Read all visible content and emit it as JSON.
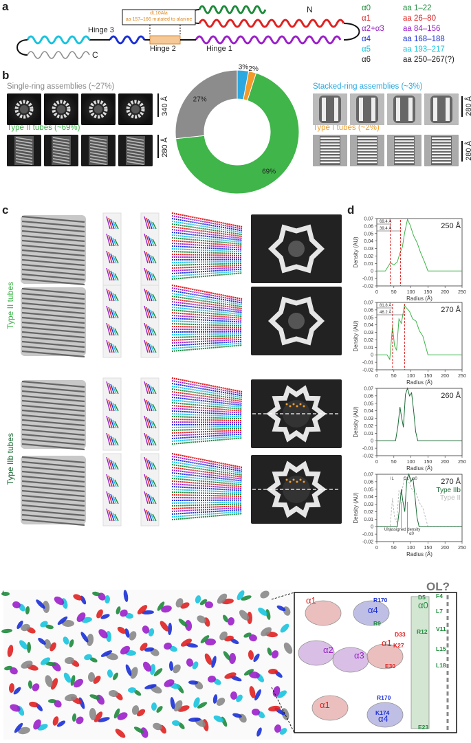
{
  "panel_labels": {
    "a": "a",
    "b": "b",
    "c": "c",
    "d": "d",
    "e": "e"
  },
  "panel_a": {
    "n_label": "N",
    "c_label": "C",
    "hinge1": "Hinge 1",
    "hinge2": "Hinge 2",
    "hinge3": "Hinge 3",
    "callout_line1": "dL10Ala",
    "callout_line2": "aa 157–166 mutated to alanine",
    "legend": [
      {
        "name": "α0",
        "range": "aa 1–22",
        "color": "#1e8a3c"
      },
      {
        "name": "α1",
        "range": "aa 26–80",
        "color": "#e02020"
      },
      {
        "name": "α2+α3",
        "range": "aa 84–156",
        "color": "#9b1fc9"
      },
      {
        "name": "α4",
        "range": "aa 168–188",
        "color": "#1a2fd6"
      },
      {
        "name": "α5",
        "range": "aa 193–217",
        "color": "#18c3de"
      },
      {
        "name": "α6",
        "range": "aa 250–267(?)",
        "color": "#222222"
      }
    ]
  },
  "panel_b": {
    "single_ring": "Single-ring assemblies (~27%)",
    "type2": "Type II tubes (~69%)",
    "stacked": "Stacked-ring assemblies (~3%)",
    "type1": "Type I tubes (~2%)",
    "scale_340": "340 Å",
    "scale_280a": "280 Å",
    "scale_280b": "280 Å",
    "scale_280c": "280 Å",
    "colors": {
      "single_ring": "#888888",
      "type2": "#3bb54a",
      "stacked": "#2aa8e0",
      "type1": "#f0a030"
    }
  },
  "chart_data": [
    {
      "type": "pie",
      "donut": true,
      "categories": [
        "Type II tubes",
        "Single-ring assemblies",
        "Stacked-ring assemblies",
        "Type I tubes"
      ],
      "values": [
        69,
        27,
        3,
        2
      ],
      "labels": [
        "69%",
        "27%",
        "3%",
        "2%"
      ],
      "colors": [
        "#3fb54a",
        "#8c8c8c",
        "#2ca8e0",
        "#f39a2a"
      ]
    },
    {
      "type": "line",
      "title": "250 Å",
      "xlabel": "Radius (Å)",
      "ylabel": "Density (AU)",
      "xlim": [
        0,
        250
      ],
      "ylim": [
        -0.02,
        0.07
      ],
      "x": [
        0,
        25,
        40,
        50,
        60,
        68,
        75,
        82,
        90,
        98,
        108,
        118,
        128,
        140,
        150,
        250
      ],
      "y": [
        0,
        0,
        0.011,
        0.008,
        0.012,
        0.024,
        0.032,
        0.052,
        0.069,
        0.061,
        0.047,
        0.038,
        0.025,
        0.012,
        0,
        0
      ],
      "annotations": [
        "69.4 Å",
        "39.4 Å"
      ],
      "markers": [
        39.4,
        69.4
      ],
      "color": "#3fb54a"
    },
    {
      "type": "line",
      "title": "270 Å",
      "xlabel": "Radius (Å)",
      "ylabel": "Density (AU)",
      "xlim": [
        0,
        250
      ],
      "ylim": [
        -0.02,
        0.07
      ],
      "x": [
        0,
        30,
        38,
        46,
        52,
        58,
        65,
        72,
        81,
        88,
        96,
        105,
        115,
        125,
        135,
        150,
        250
      ],
      "y": [
        0,
        0,
        -0.006,
        0.038,
        0.012,
        0.006,
        0.048,
        0.042,
        0.066,
        0.062,
        0.058,
        0.048,
        0.045,
        0.032,
        0.025,
        0,
        0
      ],
      "annotations": [
        "81.8 Å",
        "46.2 Å"
      ],
      "markers": [
        46.2,
        81.8
      ],
      "color": "#3fb54a"
    },
    {
      "type": "line",
      "title": "260 Å",
      "xlabel": "Radius (Å)",
      "ylabel": "Density (AU)",
      "xlim": [
        0,
        250
      ],
      "ylim": [
        -0.02,
        0.07
      ],
      "x": [
        0,
        55,
        62,
        68,
        72,
        78,
        84,
        90,
        96,
        102,
        108,
        114,
        120,
        250
      ],
      "y": [
        0,
        0,
        0.02,
        0.045,
        0.033,
        0.018,
        0.062,
        0.07,
        0.06,
        0.064,
        0.04,
        0.012,
        0,
        0
      ],
      "color": "#1a6b35"
    },
    {
      "type": "line",
      "title": "270 Å",
      "xlabel": "Radius (Å)",
      "ylabel": "Density (AU)",
      "xlim": [
        0,
        250
      ],
      "ylim": [
        -0.02,
        0.07
      ],
      "series": [
        {
          "name": "Type IIb",
          "x": [
            0,
            60,
            66,
            72,
            76,
            82,
            88,
            94,
            100,
            106,
            112,
            118,
            124,
            250
          ],
          "y": [
            0,
            0,
            0.022,
            0.05,
            0.035,
            0.02,
            0.062,
            0.07,
            0.06,
            0.065,
            0.04,
            0.012,
            0,
            0
          ],
          "color": "#1a6b35"
        },
        {
          "name": "Type II",
          "x": [
            0,
            30,
            38,
            46,
            52,
            58,
            65,
            72,
            81,
            88,
            96,
            105,
            115,
            125,
            135,
            150,
            250
          ],
          "y": [
            0,
            0,
            -0.006,
            0.038,
            0.012,
            0.006,
            0.048,
            0.042,
            0.066,
            0.062,
            0.058,
            0.048,
            0.045,
            0.032,
            0.025,
            0,
            0
          ],
          "color": "#bbbbbb"
        }
      ],
      "annotations": [
        "IL",
        "OL+ α0",
        "Unassigned density",
        "α0"
      ]
    }
  ],
  "axis": {
    "yticks": [
      "0.07",
      "0.06",
      "0.05",
      "0.04",
      "0.03",
      "0.02",
      "0.01",
      "0",
      "-0.01",
      "-0.02"
    ],
    "xticks": [
      "0",
      "50",
      "100",
      "150",
      "200",
      "250"
    ]
  },
  "panel_c": {
    "type2": "Type II tubes",
    "type2b": "Type IIb tubes"
  },
  "panel_e": {
    "ol_label": "OL?",
    "residues": [
      {
        "t": "F4",
        "c": "#1e8a3c"
      },
      {
        "t": "D5",
        "c": "#1e8a3c"
      },
      {
        "t": "L7",
        "c": "#1e8a3c"
      },
      {
        "t": "R9",
        "c": "#1e8a3c"
      },
      {
        "t": "V11",
        "c": "#1e8a3c"
      },
      {
        "t": "R12",
        "c": "#1e8a3c"
      },
      {
        "t": "L15",
        "c": "#1e8a3c"
      },
      {
        "t": "L18",
        "c": "#1e8a3c"
      },
      {
        "t": "E23",
        "c": "#1e8a3c"
      },
      {
        "t": "R170",
        "c": "#1a2fd6"
      },
      {
        "t": "D33",
        "c": "#e02020"
      },
      {
        "t": "K27",
        "c": "#e02020"
      },
      {
        "t": "E30",
        "c": "#e02020"
      },
      {
        "t": "R170",
        "c": "#1a2fd6"
      },
      {
        "t": "K174",
        "c": "#1a2fd6"
      }
    ],
    "helix_labels": [
      {
        "t": "α1",
        "c": "#e02020"
      },
      {
        "t": "α4",
        "c": "#1a2fd6"
      },
      {
        "t": "α0",
        "c": "#1e8a3c"
      },
      {
        "t": "α1",
        "c": "#e02020"
      },
      {
        "t": "α2",
        "c": "#9b1fc9"
      },
      {
        "t": "α3",
        "c": "#9b1fc9"
      },
      {
        "t": "α1",
        "c": "#e02020"
      },
      {
        "t": "α4",
        "c": "#1a2fd6"
      }
    ]
  }
}
